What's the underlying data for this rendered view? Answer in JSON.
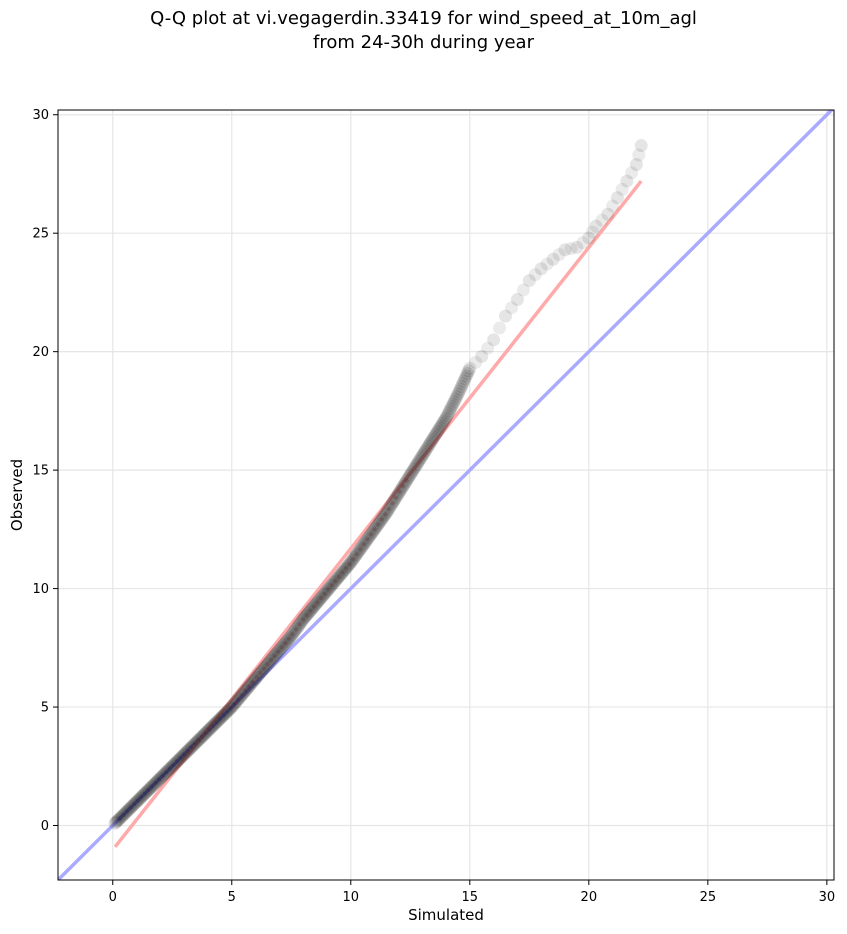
{
  "chart_data": {
    "type": "scatter",
    "title_line1": "Q-Q plot at vi.vegagerdin.33419 for wind_speed_at_10m_agl",
    "title_line2": "from 24-30h during year",
    "xlabel": "Simulated",
    "ylabel": "Observed",
    "xlim": [
      -2.3,
      30.3
    ],
    "ylim": [
      -2.3,
      30.2
    ],
    "xticks": [
      0,
      5,
      10,
      15,
      20,
      25,
      30
    ],
    "yticks": [
      0,
      5,
      10,
      15,
      20,
      25,
      30
    ],
    "grid": true,
    "reference_line": {
      "x": [
        -2.3,
        30.3
      ],
      "y": [
        -2.3,
        30.3
      ],
      "color": "#aaaaff"
    },
    "fit_line": {
      "x": [
        0.1,
        22.2
      ],
      "y": [
        -0.9,
        27.2
      ],
      "color": "#ffaaaa"
    },
    "quantiles_sample": {
      "x": [
        0.1,
        0.3,
        0.5,
        0.8,
        1.0,
        1.3,
        1.6,
        2.0,
        2.4,
        2.8,
        3.2,
        3.6,
        4.0,
        4.5,
        5.0,
        5.5,
        6.0,
        6.5,
        7.0,
        7.5,
        8.0,
        8.5,
        9.0,
        9.5,
        10.0,
        10.5,
        11.0,
        11.5,
        12.0,
        12.5,
        13.0,
        13.5,
        14.0,
        14.5,
        15.0,
        15.5,
        16.0,
        16.5,
        17.0,
        17.5,
        18.0,
        18.5,
        19.0,
        19.5,
        20.0,
        20.3,
        20.8,
        21.2,
        21.6,
        22.0,
        22.2
      ],
      "y": [
        0.1,
        0.3,
        0.5,
        0.8,
        1.0,
        1.3,
        1.6,
        2.0,
        2.4,
        2.8,
        3.2,
        3.6,
        4.0,
        4.5,
        5.0,
        5.6,
        6.2,
        6.8,
        7.4,
        8.0,
        8.7,
        9.3,
        9.9,
        10.5,
        11.1,
        11.8,
        12.5,
        13.2,
        14.0,
        14.8,
        15.6,
        16.4,
        17.2,
        18.2,
        19.3,
        19.8,
        20.5,
        21.5,
        22.2,
        23.0,
        23.5,
        23.9,
        24.3,
        24.4,
        24.8,
        25.3,
        25.8,
        26.5,
        27.2,
        27.9,
        28.7
      ]
    }
  }
}
